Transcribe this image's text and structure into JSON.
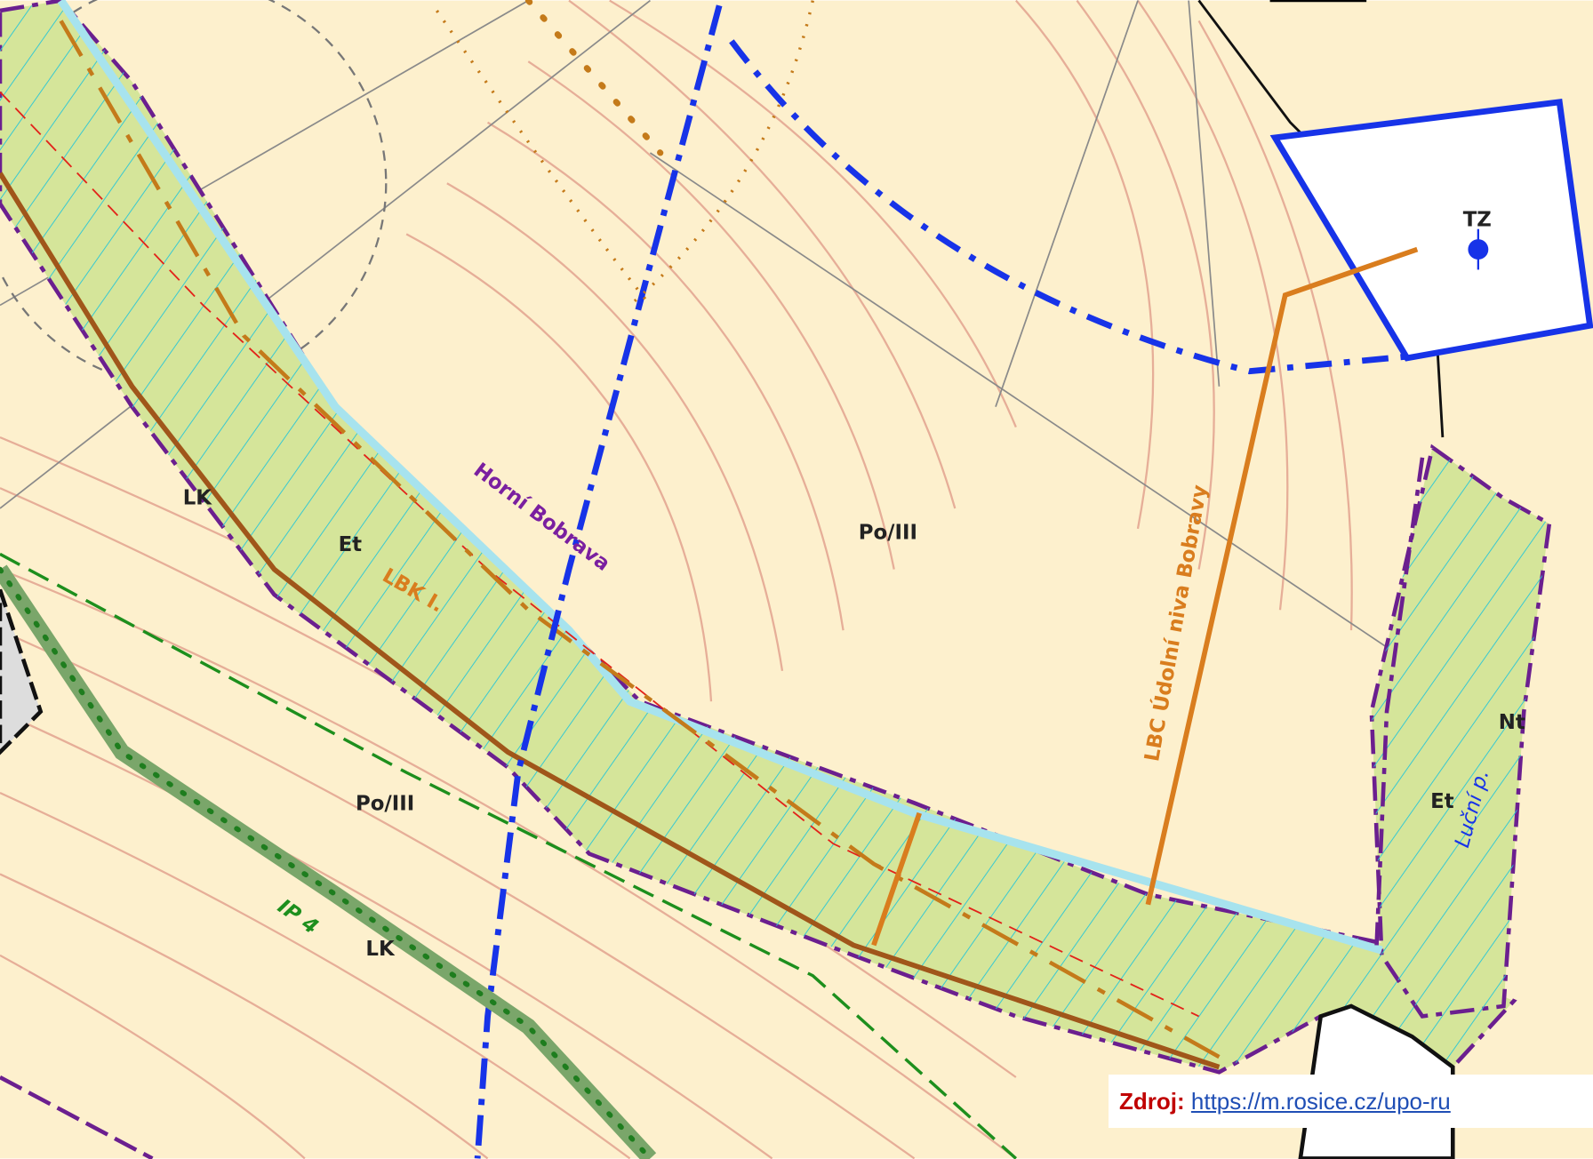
{
  "map": {
    "labels": {
      "river": "Horní Bobrava",
      "zone_top": "Po/III",
      "zone_bottom": "Po/III",
      "et_left": "Et",
      "et_right": "Et",
      "lk_top": "LK",
      "lk_bottom": "LK",
      "lbk": "LBK I.",
      "lbc": "LBC Údolní niva Bobravy",
      "tz": "TZ",
      "nt": "Nt",
      "stream": "Luční p.",
      "ip": "IP 4"
    }
  },
  "source": {
    "prefix": "Zdroj:",
    "url": "https://m.rosice.cz/upo-ru"
  }
}
